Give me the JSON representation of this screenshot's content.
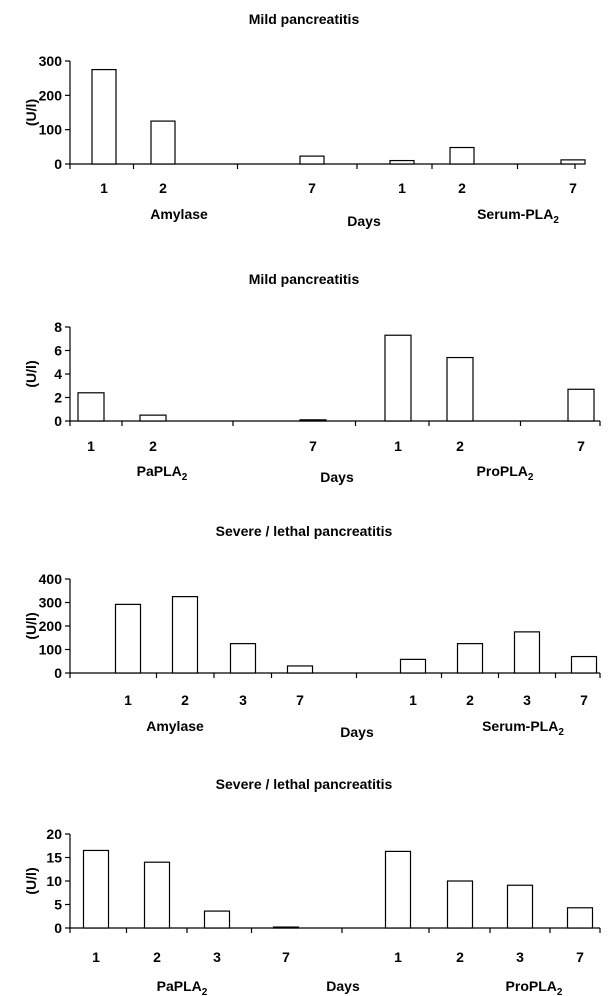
{
  "chart_data": [
    {
      "type": "bar",
      "title": "Mild pancreatitis",
      "ylabel": "(U/l)",
      "xlabel": "Days",
      "ylim": [
        0,
        300
      ],
      "yticks": [
        0,
        100,
        200,
        300
      ],
      "groups": [
        {
          "label": "Amylase",
          "sub": "",
          "categories": [
            "1",
            "2",
            "7"
          ],
          "values": [
            275,
            125,
            23
          ]
        },
        {
          "label": "Serum-PLA",
          "sub": "2",
          "categories": [
            "1",
            "2",
            "7"
          ],
          "values": [
            10,
            48,
            12
          ]
        }
      ]
    },
    {
      "type": "bar",
      "title": "Mild pancreatitis",
      "ylabel": "(U/l)",
      "xlabel": "Days",
      "ylim": [
        0,
        8
      ],
      "yticks": [
        0,
        2,
        4,
        6,
        8
      ],
      "groups": [
        {
          "label": "PaPLA",
          "sub": "2",
          "categories": [
            "1",
            "2",
            "7"
          ],
          "values": [
            2.4,
            0.5,
            0.1
          ]
        },
        {
          "label": "ProPLA",
          "sub": "2",
          "categories": [
            "1",
            "2",
            "7"
          ],
          "values": [
            7.3,
            5.4,
            2.7
          ]
        }
      ]
    },
    {
      "type": "bar",
      "title": "Severe / lethal pancreatitis",
      "ylabel": "(U/l)",
      "xlabel": "Days",
      "ylim": [
        0,
        400
      ],
      "yticks": [
        0,
        100,
        200,
        300,
        400
      ],
      "groups": [
        {
          "label": "Amylase",
          "sub": "",
          "categories": [
            "1",
            "2",
            "3",
            "7"
          ],
          "values": [
            292,
            325,
            125,
            30
          ]
        },
        {
          "label": "Serum-PLA",
          "sub": "2",
          "categories": [
            "1",
            "2",
            "3",
            "7"
          ],
          "values": [
            58,
            125,
            175,
            70
          ]
        }
      ]
    },
    {
      "type": "bar",
      "title": "Severe / lethal pancreatitis",
      "ylabel": "(U/l)",
      "xlabel": "Days",
      "ylim": [
        0,
        20
      ],
      "yticks": [
        0,
        5,
        10,
        15,
        20
      ],
      "groups": [
        {
          "label": "PaPLA",
          "sub": "2",
          "categories": [
            "1",
            "2",
            "3",
            "7"
          ],
          "values": [
            16.5,
            14,
            3.6,
            0.2
          ]
        },
        {
          "label": "ProPLA",
          "sub": "2",
          "categories": [
            "1",
            "2",
            "3",
            "7"
          ],
          "values": [
            16.3,
            10,
            9.1,
            4.3
          ]
        }
      ]
    }
  ]
}
